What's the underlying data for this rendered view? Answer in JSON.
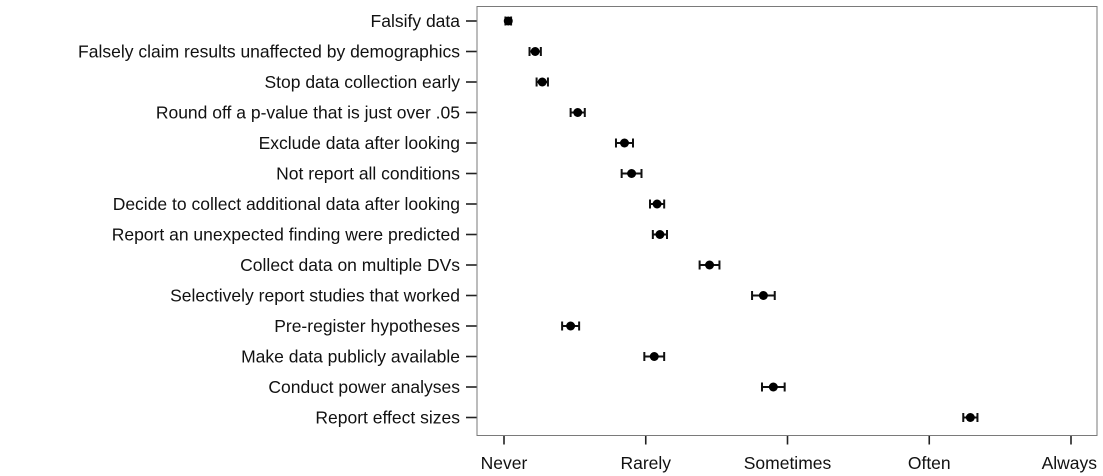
{
  "chart_data": {
    "type": "scatter",
    "title": "",
    "xlabel": "",
    "ylabel": "",
    "x_tick_labels": [
      "Never",
      "Rarely",
      "Sometimes",
      "Often",
      "Always"
    ],
    "x_tick_values": [
      1,
      2,
      3,
      4,
      5
    ],
    "xlim": [
      1,
      5
    ],
    "grid": false,
    "legend": false,
    "error_bars": true,
    "colors": {
      "point": "#000000",
      "frame": "#7a7a7a",
      "text": "#111111"
    },
    "categories": [
      "Falsify data",
      "Falsely claim results unaffected by demographics",
      "Stop data collection early",
      "Round off a p-value that is just over .05",
      "Exclude data after looking",
      "Not report all conditions",
      "Decide to collect additional data after looking",
      "Report an unexpected finding were predicted",
      "Collect data on multiple DVs",
      "Selectively report studies that worked",
      "Pre-register hypotheses",
      "Make data publicly available",
      "Conduct power analyses",
      "Report effect sizes"
    ],
    "series": [
      {
        "values": [
          1.03,
          1.22,
          1.27,
          1.52,
          1.85,
          1.9,
          2.08,
          2.1,
          2.45,
          2.83,
          1.47,
          2.06,
          2.9,
          4.29
        ],
        "error": [
          0.02,
          0.04,
          0.04,
          0.05,
          0.06,
          0.07,
          0.05,
          0.05,
          0.07,
          0.08,
          0.06,
          0.07,
          0.08,
          0.05
        ]
      }
    ]
  }
}
